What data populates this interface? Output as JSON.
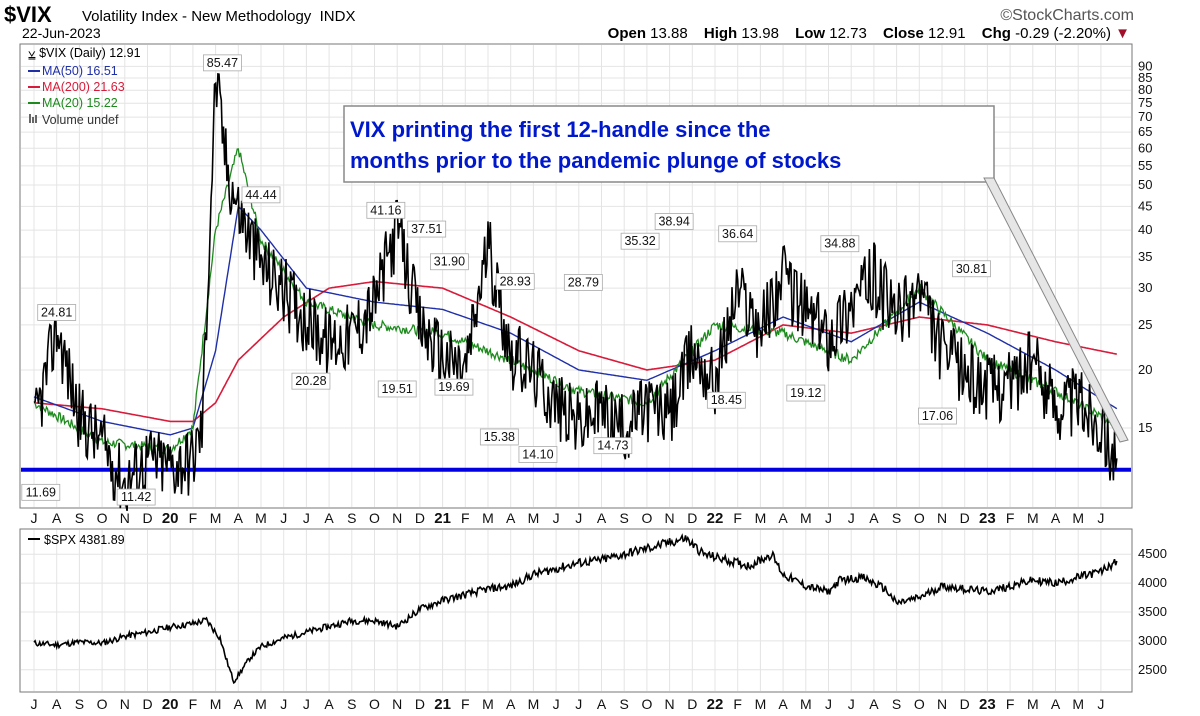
{
  "header": {
    "symbol": "$VIX",
    "name": "Volatility Index - New Methodology",
    "exchange": "INDX",
    "date": "22-Jun-2023",
    "brand": "©StockCharts.com",
    "open_label": "Open",
    "open": "13.88",
    "high_label": "High",
    "high": "13.98",
    "low_label": "Low",
    "low": "12.73",
    "close_label": "Close",
    "close": "12.91",
    "chg_label": "Chg",
    "chg": "-0.29 (-2.20%)",
    "down_marker": "▼"
  },
  "legend": {
    "vix": "$VIX (Daily) 12.91",
    "ma50": "MA(50) 16.51",
    "ma200": "MA(200) 21.63",
    "ma20": "MA(20) 15.22",
    "volume": "Volume undef",
    "spx": "$SPX 4381.89"
  },
  "annotation": {
    "line1": "VIX printing the first 12-handle since the",
    "line2": "months prior to the pandemic plunge of stocks"
  },
  "colors": {
    "ma50": "#1f2fa8",
    "ma200": "#d81b3a",
    "ma20": "#1d8a1d",
    "price": "#000000",
    "support_line": "#0000e0",
    "annotation_text": "#0018cc"
  },
  "chart_data": [
    {
      "type": "line",
      "title": "$VIX Volatility Index - New Methodology",
      "scale": "log",
      "ylim": [
        10.5,
        92
      ],
      "y_ticks": [
        15,
        20,
        25,
        30,
        35,
        40,
        45,
        50,
        55,
        60,
        65,
        70,
        75,
        80,
        85,
        90
      ],
      "x_months": [
        "J",
        "A",
        "S",
        "O",
        "N",
        "D",
        "20",
        "F",
        "M",
        "A",
        "M",
        "J",
        "J",
        "A",
        "S",
        "O",
        "N",
        "D",
        "21",
        "F",
        "M",
        "A",
        "M",
        "J",
        "J",
        "A",
        "S",
        "O",
        "N",
        "D",
        "22",
        "F",
        "M",
        "A",
        "M",
        "J",
        "J",
        "A",
        "S",
        "O",
        "N",
        "D",
        "23",
        "F",
        "M",
        "A",
        "M",
        "J"
      ],
      "series": [
        {
          "name": "$VIX (Daily)",
          "x": [
            0,
            1,
            2,
            3,
            4,
            5,
            6,
            7,
            7.4,
            8,
            8.5,
            9,
            10,
            11,
            12,
            13,
            14,
            15,
            16,
            17,
            18,
            19,
            20,
            21,
            22,
            23,
            24,
            25,
            26,
            27,
            28,
            29,
            30,
            31,
            32,
            33,
            34,
            35,
            36,
            37,
            38,
            39,
            40,
            41,
            42,
            43,
            44,
            45,
            46,
            47,
            47.7
          ],
          "values": [
            15,
            24.81,
            16,
            14,
            11.42,
            13,
            12.5,
            13,
            15,
            85.47,
            55,
            44.44,
            34,
            30,
            26,
            23,
            24,
            28,
            41.16,
            25,
            21.5,
            20,
            37.51,
            22,
            20,
            17,
            15.38,
            16.5,
            15,
            17,
            16,
            22,
            19,
            30,
            25,
            32,
            27,
            24,
            28,
            32,
            26,
            30,
            22,
            20,
            18.5,
            19,
            21,
            17,
            17.5,
            15.5,
            12.91
          ]
        },
        {
          "name": "MA(50)",
          "x": [
            0,
            3,
            6,
            7,
            8,
            9,
            10,
            12,
            15,
            18,
            21,
            24,
            27,
            30,
            33,
            36,
            39,
            42,
            45,
            47.7
          ],
          "values": [
            17.5,
            15.5,
            14.5,
            15,
            22,
            45,
            40,
            30,
            28,
            27,
            24,
            20,
            19,
            22,
            26,
            23,
            28,
            24,
            20,
            16.51
          ]
        },
        {
          "name": "MA(200)",
          "x": [
            0,
            3,
            6,
            7,
            8,
            9,
            11,
            13,
            15,
            18,
            21,
            24,
            27,
            30,
            33,
            36,
            39,
            42,
            45,
            47.7
          ],
          "values": [
            17,
            16.5,
            15.5,
            15.5,
            17,
            21,
            26,
            30,
            31,
            30,
            26,
            22,
            20,
            21,
            25,
            24,
            26,
            25,
            23,
            21.63
          ]
        },
        {
          "name": "MA(20)",
          "x": [
            0,
            3,
            6,
            7,
            8,
            9,
            10,
            12,
            15,
            18,
            21,
            24,
            27,
            30,
            33,
            36,
            39,
            42,
            45,
            47.7
          ],
          "values": [
            17,
            14,
            13.5,
            15,
            40,
            60,
            38,
            28,
            25,
            24,
            21,
            18,
            17,
            25,
            24,
            21,
            30,
            21,
            18,
            15.22
          ]
        }
      ],
      "price_labels": [
        {
          "x": 1,
          "value": 24.81,
          "text": "24.81"
        },
        {
          "x": 0.3,
          "value": 11.69,
          "text": "11.69"
        },
        {
          "x": 4.5,
          "value": 11.42,
          "text": "11.42"
        },
        {
          "x": 8.3,
          "value": 85.47,
          "text": "85.47"
        },
        {
          "x": 10,
          "value": 44.44,
          "text": "44.44"
        },
        {
          "x": 12.2,
          "value": 20.28,
          "text": "20.28"
        },
        {
          "x": 15.5,
          "value": 41.16,
          "text": "41.16"
        },
        {
          "x": 16,
          "value": 19.51,
          "text": "19.51"
        },
        {
          "x": 17.3,
          "value": 37.51,
          "text": "37.51"
        },
        {
          "x": 18.3,
          "value": 31.9,
          "text": "31.90"
        },
        {
          "x": 18.5,
          "value": 19.69,
          "text": "19.69"
        },
        {
          "x": 20.5,
          "value": 15.38,
          "text": "15.38"
        },
        {
          "x": 21.2,
          "value": 28.93,
          "text": "28.93"
        },
        {
          "x": 22.2,
          "value": 14.1,
          "text": "14.10"
        },
        {
          "x": 24.2,
          "value": 28.79,
          "text": "28.79"
        },
        {
          "x": 25.5,
          "value": 14.73,
          "text": "14.73"
        },
        {
          "x": 26.7,
          "value": 35.32,
          "text": "35.32"
        },
        {
          "x": 28.2,
          "value": 38.94,
          "text": "38.94"
        },
        {
          "x": 30.5,
          "value": 18.45,
          "text": "18.45"
        },
        {
          "x": 31,
          "value": 36.64,
          "text": "36.64"
        },
        {
          "x": 34,
          "value": 19.12,
          "text": "19.12"
        },
        {
          "x": 35.5,
          "value": 34.88,
          "text": "34.88"
        },
        {
          "x": 39.8,
          "value": 17.06,
          "text": "17.06"
        },
        {
          "x": 41.3,
          "value": 30.81,
          "text": "30.81"
        }
      ],
      "support_level": 12.2
    },
    {
      "type": "line",
      "title": "$SPX",
      "ylim": [
        2150,
        4850
      ],
      "y_ticks": [
        2500,
        3000,
        3500,
        4000,
        4500
      ],
      "x_months": [
        "J",
        "A",
        "S",
        "O",
        "N",
        "D",
        "20",
        "F",
        "M",
        "A",
        "M",
        "J",
        "J",
        "A",
        "S",
        "O",
        "N",
        "D",
        "21",
        "F",
        "M",
        "A",
        "M",
        "J",
        "J",
        "A",
        "S",
        "O",
        "N",
        "D",
        "22",
        "F",
        "M",
        "A",
        "M",
        "J",
        "J",
        "A",
        "S",
        "O",
        "N",
        "D",
        "23",
        "F",
        "M",
        "A",
        "M",
        "J"
      ],
      "series": [
        {
          "name": "$SPX",
          "x": [
            0,
            1,
            2,
            3,
            4,
            5,
            6,
            7,
            7.6,
            8.2,
            8.8,
            9.5,
            10,
            11,
            12,
            13,
            14,
            15,
            16,
            17,
            18,
            19,
            20,
            21,
            22,
            23,
            24,
            25,
            26,
            27,
            28,
            28.7,
            29.5,
            30.5,
            31.5,
            32.5,
            33,
            34,
            35,
            35.5,
            36.5,
            37.5,
            38,
            39,
            40,
            41,
            42,
            43,
            44,
            45,
            46,
            47,
            47.7
          ],
          "values": [
            2960,
            2930,
            2980,
            2960,
            3080,
            3150,
            3240,
            3300,
            3360,
            3050,
            2300,
            2700,
            2900,
            3050,
            3150,
            3250,
            3350,
            3350,
            3250,
            3550,
            3700,
            3800,
            3900,
            3950,
            4150,
            4250,
            4350,
            4400,
            4500,
            4600,
            4700,
            4780,
            4500,
            4400,
            4300,
            4500,
            4150,
            3950,
            3850,
            4050,
            4100,
            3900,
            3650,
            3750,
            3950,
            3900,
            3850,
            3950,
            4050,
            4000,
            4100,
            4200,
            4381.89
          ]
        }
      ]
    }
  ]
}
